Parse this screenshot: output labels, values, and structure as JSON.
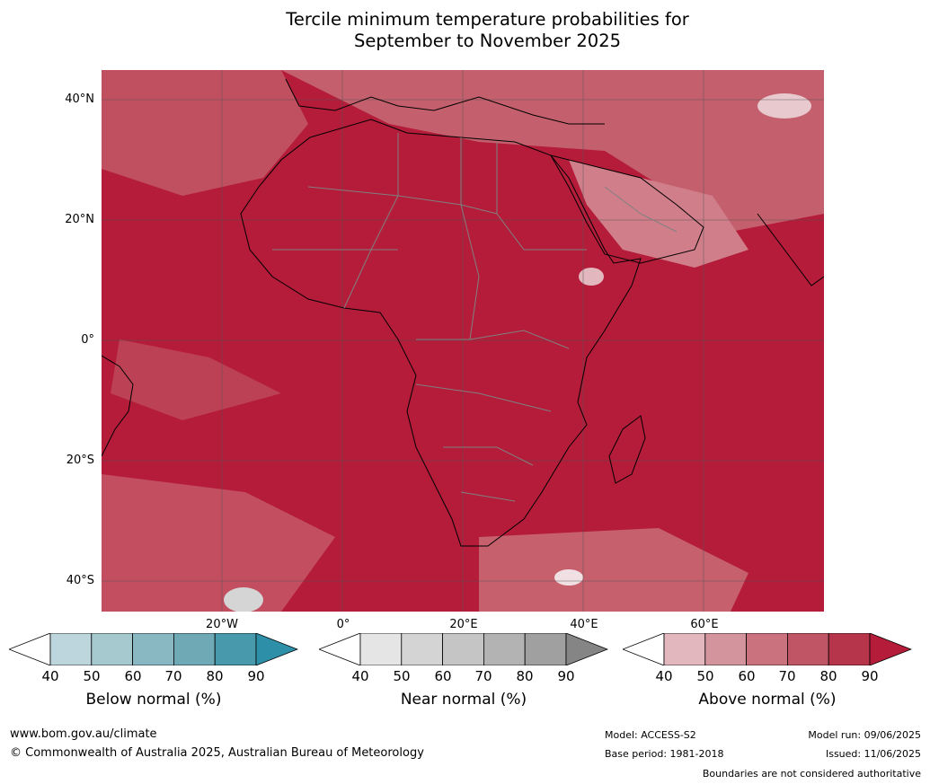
{
  "title_line1": "Tercile minimum temperature probabilities for",
  "title_line2": "September to November 2025",
  "map": {
    "lat_labels": [
      "40°N",
      "20°N",
      "0°",
      "20°S",
      "40°S"
    ],
    "lon_labels": [
      "20°W",
      "0°",
      "20°E",
      "40°E",
      "60°E"
    ],
    "ocean_color": "#b41c3a",
    "land_color": "#b51f3b",
    "boundaries_color": "#808080",
    "coast_color": "#000000"
  },
  "colorbars": [
    {
      "label": "Below normal (%)",
      "ticks": [
        "40",
        "50",
        "60",
        "70",
        "80",
        "90"
      ],
      "colors": [
        "#ffffff",
        "#bdd6dd",
        "#a6c8cf",
        "#8ab8c2",
        "#6fa9b6",
        "#4799ab",
        "#2e8fa8"
      ]
    },
    {
      "label": "Near normal (%)",
      "ticks": [
        "40",
        "50",
        "60",
        "70",
        "80",
        "90"
      ],
      "colors": [
        "#ffffff",
        "#e5e5e5",
        "#d4d4d4",
        "#c5c5c5",
        "#b3b3b3",
        "#a0a0a0",
        "#858585"
      ]
    },
    {
      "label": "Above normal (%)",
      "ticks": [
        "40",
        "50",
        "60",
        "70",
        "80",
        "90"
      ],
      "colors": [
        "#ffffff",
        "#e2b8be",
        "#d4949e",
        "#ca737f",
        "#bf5565",
        "#b6354b",
        "#b41c3a"
      ]
    }
  ],
  "footer": {
    "website": "www.bom.gov.au/climate",
    "copyright": "© Commonwealth of Australia 2025, Australian Bureau of Meteorology",
    "model": "Model: ACCESS-S2",
    "base_period": "Base period: 1981-2018",
    "model_run": "Model run: 09/06/2025",
    "issued": "Issued: 11/06/2025",
    "disclaimer": "Boundaries are not considered authoritative"
  }
}
